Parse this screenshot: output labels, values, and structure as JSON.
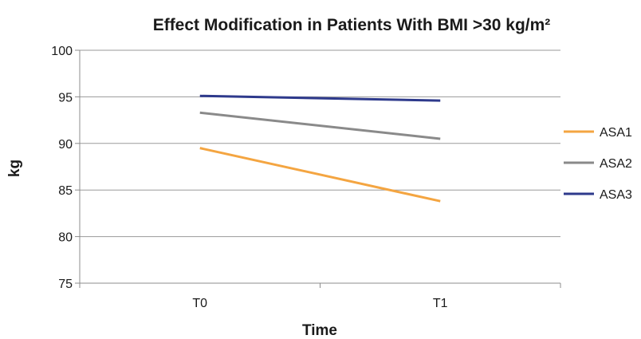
{
  "chart_data": {
    "type": "line",
    "title": "Effect Modification in Patients With BMI >30 kg/m²",
    "xlabel": "Time",
    "ylabel": "kg",
    "categories": [
      "T0",
      "T1"
    ],
    "ylim": [
      75,
      100
    ],
    "yticks": [
      75,
      80,
      85,
      90,
      95,
      100
    ],
    "grid": true,
    "legend_position": "right",
    "series": [
      {
        "name": "ASA1",
        "values": [
          89.5,
          83.8
        ],
        "color": "#f4a541"
      },
      {
        "name": "ASA2",
        "values": [
          93.3,
          90.5
        ],
        "color": "#8a8a8a"
      },
      {
        "name": "ASA3",
        "values": [
          95.1,
          94.6
        ],
        "color": "#2e3a8c"
      }
    ]
  }
}
